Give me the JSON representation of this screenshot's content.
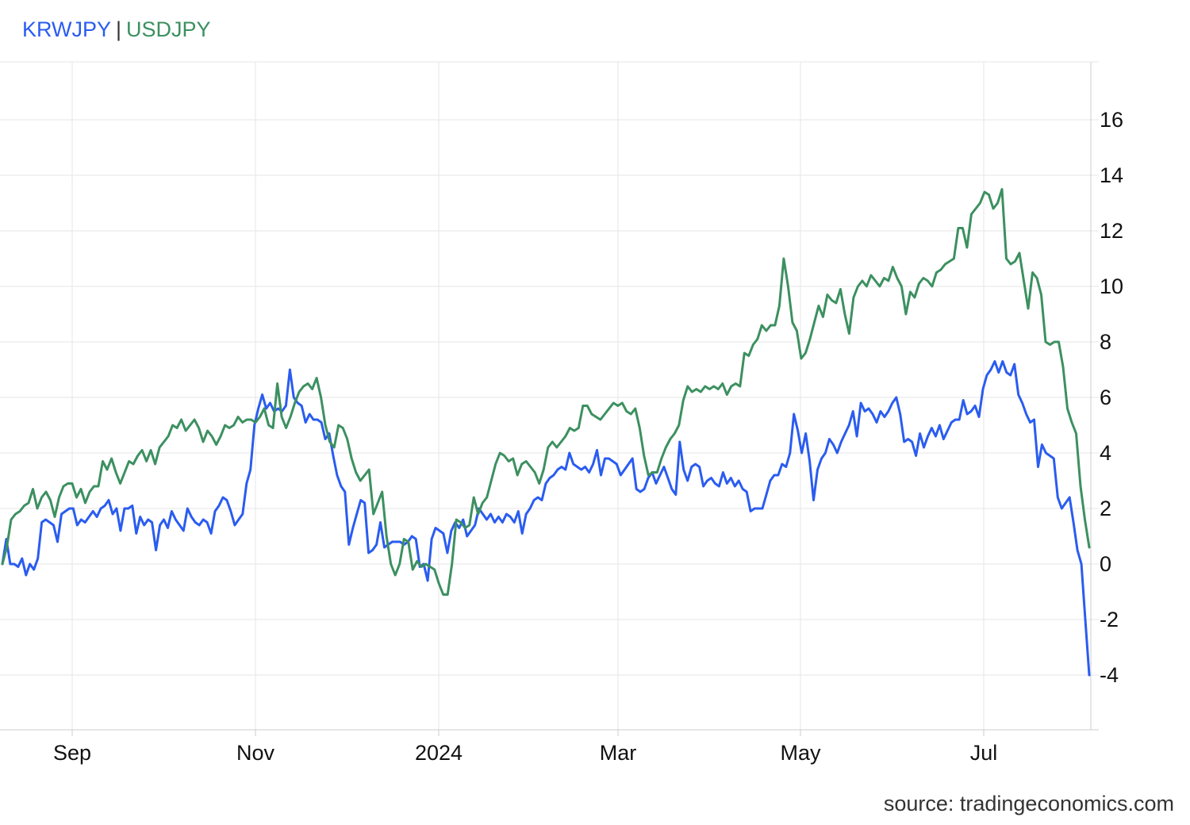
{
  "legend": {
    "separator": "|"
  },
  "source": "source: tradingeconomics.com",
  "colors": {
    "grid": "#e6e6e6",
    "axis": "#cccccc"
  },
  "chart_data": {
    "type": "line",
    "x_tick_labels": [
      "Sep",
      "Nov",
      "2024",
      "Mar",
      "May",
      "Jul"
    ],
    "y_ticks": [
      -4,
      -2,
      0,
      2,
      4,
      6,
      8,
      10,
      12,
      14,
      16
    ],
    "ylim": [
      -6,
      18
    ],
    "grid": true,
    "legend_position": "top-left",
    "series": [
      {
        "name": "KRWJPY",
        "color": "#2a5cf0",
        "values": [
          0.0,
          0.9,
          0.0,
          0.0,
          -0.1,
          0.2,
          -0.4,
          0.0,
          -0.2,
          0.2,
          1.5,
          1.6,
          1.5,
          1.4,
          0.8,
          1.8,
          1.9,
          2.0,
          2.0,
          1.4,
          1.6,
          1.5,
          1.7,
          1.9,
          1.7,
          2.0,
          2.1,
          2.3,
          1.8,
          2.0,
          1.2,
          2.0,
          2.0,
          2.1,
          1.1,
          1.7,
          1.4,
          1.6,
          1.5,
          0.5,
          1.4,
          1.6,
          1.3,
          1.9,
          1.6,
          1.4,
          1.2,
          2.0,
          1.7,
          1.5,
          1.4,
          1.6,
          1.5,
          1.1,
          1.9,
          2.1,
          2.4,
          2.3,
          1.9,
          1.4,
          1.6,
          1.8,
          2.9,
          3.4,
          5.0,
          5.6,
          6.1,
          5.6,
          5.8,
          5.5,
          5.6,
          5.5,
          5.7,
          7.0,
          6.0,
          5.8,
          5.7,
          5.1,
          5.4,
          5.2,
          5.2,
          5.1,
          4.5,
          4.7,
          3.9,
          3.2,
          2.8,
          2.6,
          0.7,
          1.3,
          1.8,
          2.3,
          2.2,
          0.4,
          0.5,
          0.7,
          1.5,
          0.6,
          0.7,
          0.8,
          0.8,
          0.8,
          0.7,
          0.8,
          1.0,
          0.9,
          -0.1,
          0.0,
          -0.6,
          0.9,
          1.3,
          1.2,
          1.1,
          0.4,
          1.2,
          1.5,
          1.3,
          1.6,
          1.0,
          1.2,
          1.4,
          2.0,
          1.8,
          1.6,
          1.8,
          1.5,
          1.7,
          1.5,
          1.8,
          1.7,
          1.5,
          1.9,
          1.1,
          1.8,
          2.0,
          2.3,
          2.4,
          2.3,
          2.9,
          3.1,
          3.2,
          3.4,
          3.5,
          3.4,
          4.0,
          3.6,
          3.5,
          3.4,
          3.5,
          3.3,
          3.6,
          4.1,
          3.2,
          3.8,
          3.8,
          3.7,
          3.6,
          3.2,
          3.4,
          3.6,
          3.8,
          2.7,
          2.6,
          2.7,
          3.1,
          3.3,
          2.9,
          3.2,
          3.5,
          3.1,
          2.7,
          2.5,
          4.4,
          3.4,
          3.0,
          3.5,
          3.6,
          3.5,
          2.8,
          3.0,
          3.1,
          2.9,
          2.8,
          3.3,
          2.9,
          3.1,
          2.8,
          3.0,
          2.7,
          2.6,
          1.9,
          2.0,
          2.0,
          2.0,
          2.5,
          3.0,
          3.2,
          3.2,
          3.6,
          3.5,
          4.0,
          5.4,
          4.8,
          4.0,
          4.7,
          3.7,
          2.3,
          3.4,
          3.8,
          4.0,
          4.5,
          4.3,
          4.0,
          4.4,
          4.7,
          5.0,
          5.5,
          4.6,
          5.8,
          5.5,
          5.6,
          5.4,
          5.1,
          5.5,
          5.3,
          5.5,
          5.8,
          6.0,
          5.4,
          4.4,
          4.5,
          4.4,
          3.9,
          4.7,
          4.2,
          4.6,
          4.9,
          4.6,
          5.0,
          4.5,
          4.8,
          5.1,
          5.2,
          5.2,
          5.9,
          5.4,
          5.5,
          5.7,
          5.3,
          6.3,
          6.8,
          7.0,
          7.3,
          6.9,
          7.3,
          6.9,
          6.8,
          7.2,
          6.1,
          5.8,
          5.4,
          5.1,
          5.2,
          3.5,
          4.3,
          4.0,
          3.9,
          3.8,
          2.4,
          2.0,
          2.2,
          2.4,
          1.5,
          0.5,
          0.0,
          -2.0,
          -4.0
        ]
      },
      {
        "name": "USDJPY",
        "color": "#3c9060",
        "values": [
          0.0,
          0.6,
          1.6,
          1.8,
          1.9,
          2.1,
          2.2,
          2.7,
          2.0,
          2.4,
          2.6,
          2.3,
          1.7,
          2.4,
          2.8,
          2.9,
          2.9,
          2.4,
          2.7,
          2.2,
          2.6,
          2.8,
          2.8,
          3.7,
          3.4,
          3.8,
          3.3,
          2.9,
          3.3,
          3.7,
          3.6,
          3.9,
          4.1,
          3.7,
          4.1,
          3.6,
          4.2,
          4.4,
          4.6,
          5.0,
          4.9,
          5.2,
          4.8,
          5.0,
          5.2,
          4.9,
          4.4,
          4.8,
          4.6,
          4.3,
          4.6,
          5.0,
          4.9,
          5.0,
          5.3,
          5.1,
          5.2,
          5.2,
          5.1,
          5.3,
          5.6,
          5.0,
          4.9,
          6.5,
          5.3,
          4.9,
          5.3,
          5.8,
          6.2,
          6.4,
          6.5,
          6.3,
          6.7,
          6.0,
          5.0,
          4.4,
          4.2,
          5.0,
          4.9,
          4.5,
          3.8,
          3.3,
          3.0,
          3.2,
          3.4,
          1.8,
          2.2,
          2.6,
          1.0,
          0.0,
          -0.4,
          0.0,
          0.9,
          0.8,
          -0.2,
          0.1,
          -0.1,
          0.0,
          -0.1,
          -0.2,
          -0.7,
          -1.1,
          -1.1,
          0.0,
          1.6,
          1.5,
          1.3,
          1.4,
          2.4,
          1.8,
          2.2,
          2.4,
          3.0,
          3.6,
          4.0,
          3.9,
          3.7,
          3.8,
          3.2,
          3.6,
          3.7,
          3.5,
          3.3,
          2.9,
          3.4,
          4.2,
          4.4,
          4.2,
          4.4,
          4.6,
          4.9,
          4.8,
          4.9,
          5.7,
          5.7,
          5.4,
          5.3,
          5.2,
          5.4,
          5.6,
          5.8,
          5.7,
          5.8,
          5.5,
          5.4,
          5.6,
          4.9,
          3.9,
          3.2,
          3.3,
          3.3,
          3.8,
          4.2,
          4.5,
          4.7,
          5.0,
          5.9,
          6.4,
          6.2,
          6.3,
          6.2,
          6.4,
          6.3,
          6.4,
          6.3,
          6.5,
          6.1,
          6.4,
          6.5,
          6.4,
          7.6,
          7.5,
          7.9,
          8.1,
          8.6,
          8.4,
          8.6,
          8.6,
          9.3,
          11.0,
          10.0,
          8.7,
          8.4,
          7.4,
          7.6,
          8.1,
          8.7,
          9.3,
          8.9,
          9.7,
          9.5,
          9.4,
          9.9,
          9.0,
          8.3,
          9.6,
          10.0,
          10.2,
          10.0,
          10.4,
          10.2,
          10.0,
          10.3,
          10.2,
          10.7,
          10.3,
          10.0,
          9.0,
          9.8,
          9.6,
          10.1,
          10.3,
          10.2,
          10.0,
          10.5,
          10.6,
          10.8,
          10.9,
          11.0,
          12.1,
          12.1,
          11.4,
          12.6,
          12.8,
          13.0,
          13.4,
          13.3,
          12.8,
          13.0,
          13.5,
          11.0,
          10.8,
          10.9,
          11.2,
          10.2,
          9.2,
          10.5,
          10.3,
          9.7,
          8.0,
          7.9,
          8.0,
          8.0,
          7.1,
          5.6,
          5.1,
          4.7,
          2.8,
          1.6,
          0.6
        ]
      }
    ]
  }
}
